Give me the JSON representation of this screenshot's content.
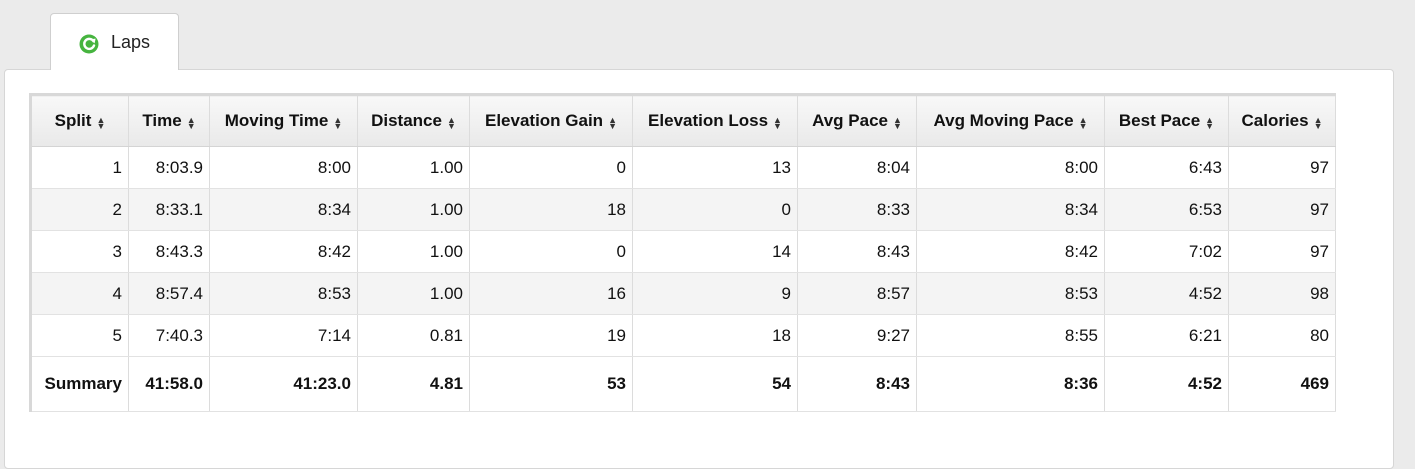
{
  "tab": {
    "label": "Laps",
    "icon": "laps-refresh-icon",
    "icon_color": "#3aaa35"
  },
  "table": {
    "headers": [
      "Split",
      "Time",
      "Moving Time",
      "Distance",
      "Elevation Gain",
      "Elevation Loss",
      "Avg Pace",
      "Avg Moving Pace",
      "Best Pace",
      "Calories"
    ],
    "sort_icon": "sort-icon",
    "rows": [
      [
        "1",
        "8:03.9",
        "8:00",
        "1.00",
        "0",
        "13",
        "8:04",
        "8:00",
        "6:43",
        "97"
      ],
      [
        "2",
        "8:33.1",
        "8:34",
        "1.00",
        "18",
        "0",
        "8:33",
        "8:34",
        "6:53",
        "97"
      ],
      [
        "3",
        "8:43.3",
        "8:42",
        "1.00",
        "0",
        "14",
        "8:43",
        "8:42",
        "7:02",
        "97"
      ],
      [
        "4",
        "8:57.4",
        "8:53",
        "1.00",
        "16",
        "9",
        "8:57",
        "8:53",
        "4:52",
        "98"
      ],
      [
        "5",
        "7:40.3",
        "7:14",
        "0.81",
        "19",
        "18",
        "9:27",
        "8:55",
        "6:21",
        "80"
      ]
    ],
    "summary": [
      "Summary",
      "41:58.0",
      "41:23.0",
      "4.81",
      "53",
      "54",
      "8:43",
      "8:36",
      "4:52",
      "469"
    ]
  }
}
